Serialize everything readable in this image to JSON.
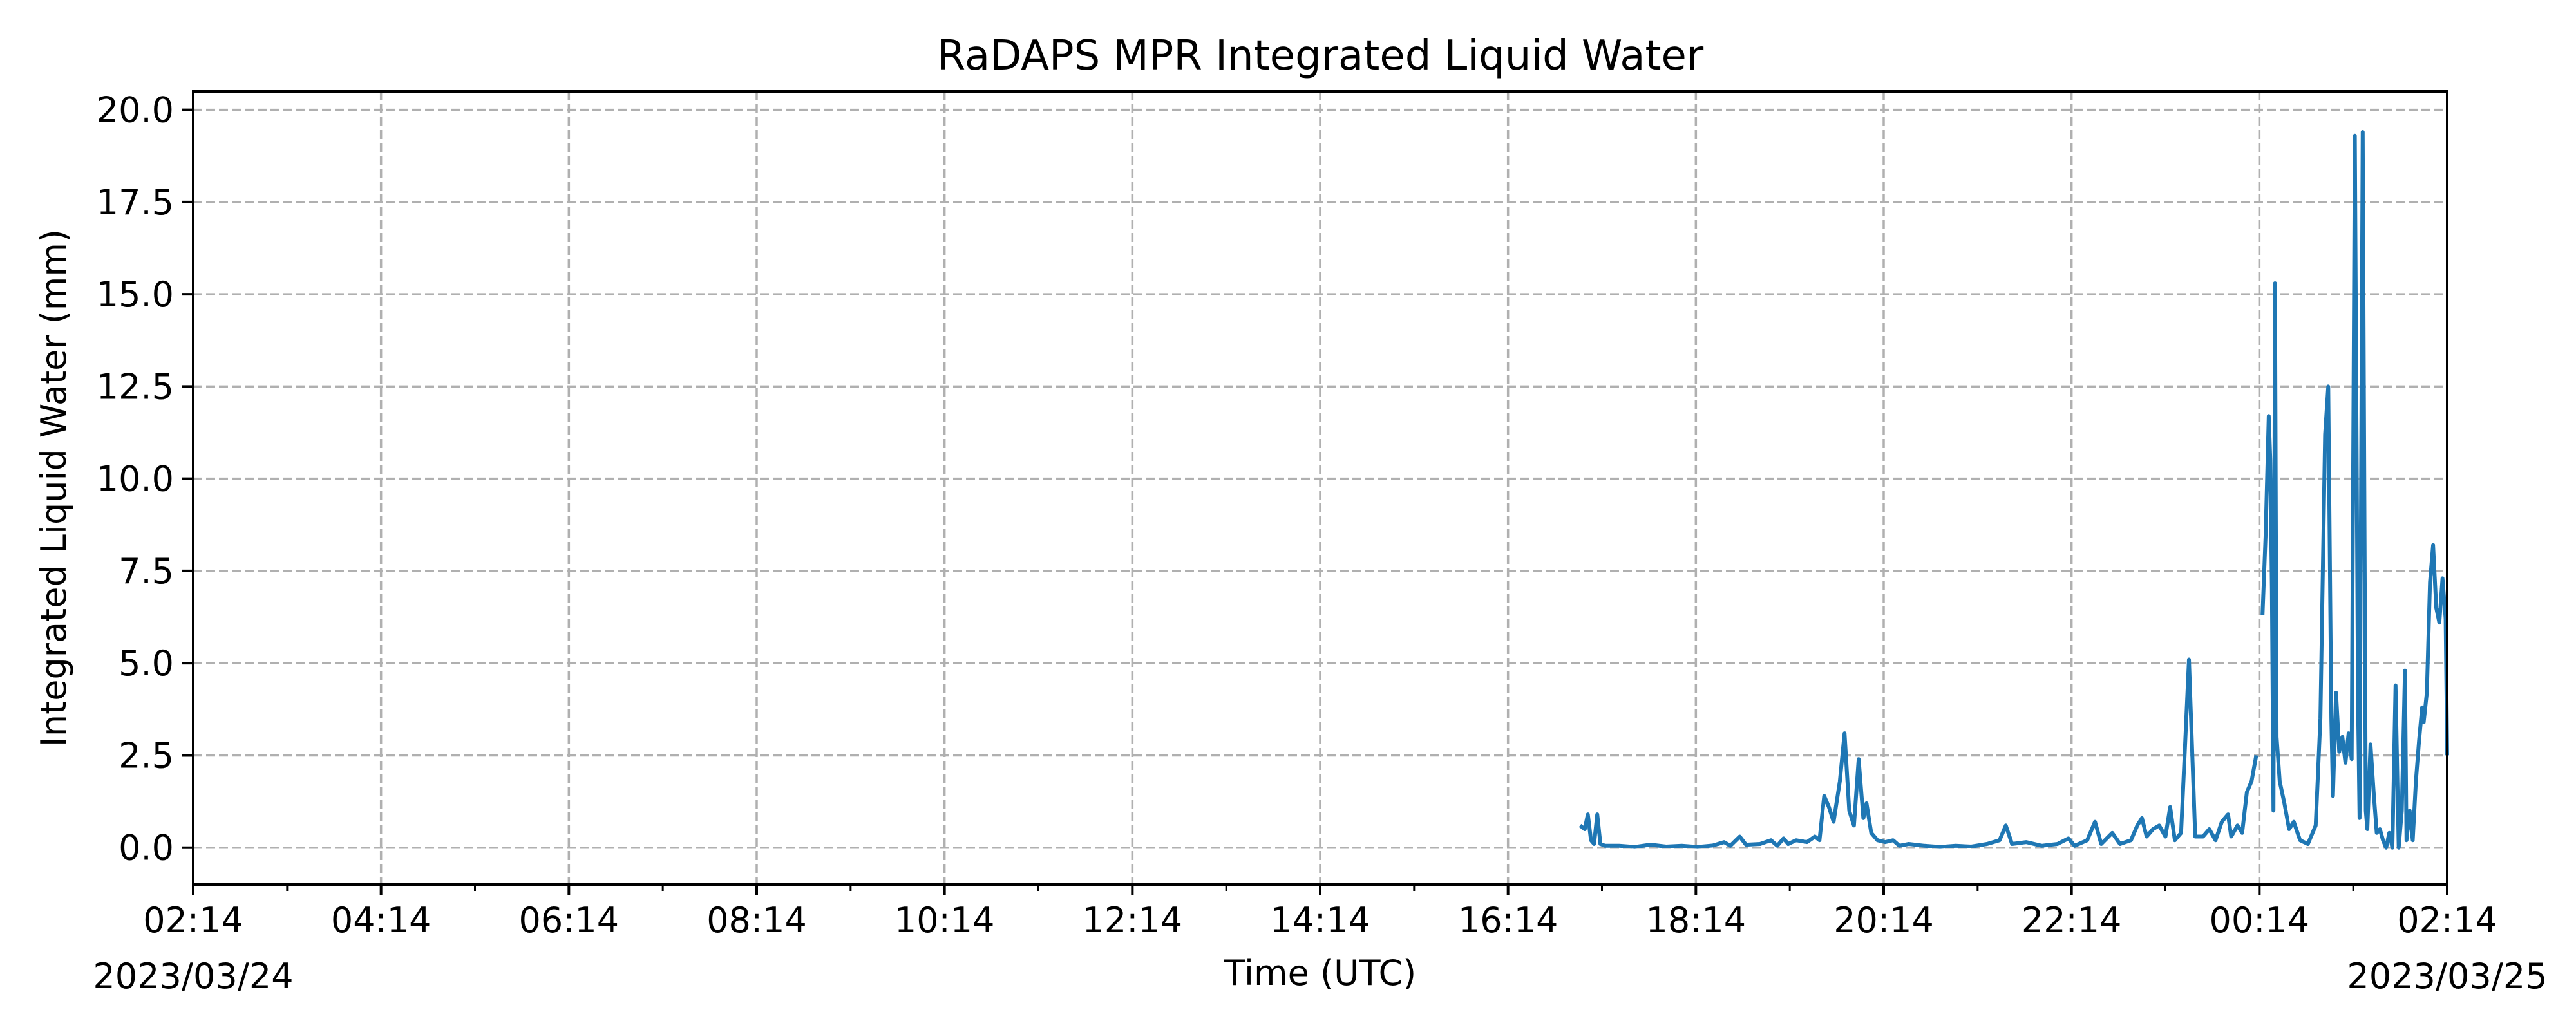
{
  "chart_data": {
    "type": "line",
    "title": "RaDAPS MPR Integrated Liquid Water",
    "xlabel": "Time (UTC)",
    "ylabel": "Integrated Liquid Water (mm)",
    "x_range": [
      "2023-03-24T02:14",
      "2023-03-25T02:14"
    ],
    "ylim": [
      -1.0,
      20.5
    ],
    "grid": true,
    "x_major_ticks": [
      "2023-03-24T02:14",
      "2023-03-24T04:14",
      "2023-03-24T06:14",
      "2023-03-24T08:14",
      "2023-03-24T10:14",
      "2023-03-24T12:14",
      "2023-03-24T14:14",
      "2023-03-24T16:14",
      "2023-03-24T18:14",
      "2023-03-24T20:14",
      "2023-03-24T22:14",
      "2023-03-25T00:14",
      "2023-03-25T02:14"
    ],
    "x_tick_labels": [
      "02:14",
      "04:14",
      "06:14",
      "08:14",
      "10:14",
      "12:14",
      "14:14",
      "16:14",
      "18:14",
      "20:14",
      "22:14",
      "00:14",
      "02:14"
    ],
    "x_date_labels": {
      "start": "2023/03/24",
      "end": "2023/03/25"
    },
    "y_ticks": [
      0.0,
      2.5,
      5.0,
      7.5,
      10.0,
      12.5,
      15.0,
      17.5,
      20.0
    ],
    "y_tick_labels": [
      "0.0",
      "2.5",
      "5.0",
      "7.5",
      "10.0",
      "12.5",
      "15.0",
      "17.5",
      "20.0"
    ],
    "series_color": "#1f77b4",
    "segments": [
      [
        [
          "2023-03-24T17:00",
          0.6
        ],
        [
          "2023-03-24T17:03",
          0.5
        ],
        [
          "2023-03-24T17:05",
          0.9
        ],
        [
          "2023-03-24T17:07",
          0.2
        ],
        [
          "2023-03-24T17:09",
          0.1
        ],
        [
          "2023-03-24T17:11",
          0.9
        ],
        [
          "2023-03-24T17:13",
          0.1
        ],
        [
          "2023-03-24T17:16",
          0.05
        ],
        [
          "2023-03-24T17:25",
          0.05
        ],
        [
          "2023-03-24T17:35",
          0.02
        ],
        [
          "2023-03-24T17:45",
          0.08
        ],
        [
          "2023-03-24T17:55",
          0.03
        ],
        [
          "2023-03-24T18:05",
          0.05
        ],
        [
          "2023-03-24T18:15",
          0.02
        ],
        [
          "2023-03-24T18:25",
          0.06
        ],
        [
          "2023-03-24T18:32",
          0.15
        ],
        [
          "2023-03-24T18:36",
          0.05
        ],
        [
          "2023-03-24T18:42",
          0.3
        ],
        [
          "2023-03-24T18:46",
          0.08
        ],
        [
          "2023-03-24T18:55",
          0.1
        ],
        [
          "2023-03-24T19:02",
          0.2
        ],
        [
          "2023-03-24T19:06",
          0.05
        ],
        [
          "2023-03-24T19:10",
          0.25
        ],
        [
          "2023-03-24T19:13",
          0.1
        ],
        [
          "2023-03-24T19:18",
          0.2
        ],
        [
          "2023-03-24T19:25",
          0.15
        ],
        [
          "2023-03-24T19:30",
          0.3
        ],
        [
          "2023-03-24T19:33",
          0.2
        ],
        [
          "2023-03-24T19:36",
          1.4
        ],
        [
          "2023-03-24T19:39",
          1.1
        ],
        [
          "2023-03-24T19:42",
          0.7
        ],
        [
          "2023-03-24T19:46",
          1.8
        ],
        [
          "2023-03-24T19:49",
          3.1
        ],
        [
          "2023-03-24T19:52",
          1.0
        ],
        [
          "2023-03-24T19:55",
          0.6
        ],
        [
          "2023-03-24T19:58",
          2.4
        ],
        [
          "2023-03-24T20:01",
          0.8
        ],
        [
          "2023-03-24T20:03",
          1.2
        ],
        [
          "2023-03-24T20:06",
          0.4
        ],
        [
          "2023-03-24T20:10",
          0.2
        ],
        [
          "2023-03-24T20:15",
          0.15
        ],
        [
          "2023-03-24T20:20",
          0.2
        ],
        [
          "2023-03-24T20:24",
          0.05
        ],
        [
          "2023-03-24T20:30",
          0.1
        ],
        [
          "2023-03-24T20:40",
          0.05
        ],
        [
          "2023-03-24T20:50",
          0.02
        ],
        [
          "2023-03-24T21:00",
          0.05
        ],
        [
          "2023-03-24T21:10",
          0.03
        ],
        [
          "2023-03-24T21:20",
          0.1
        ],
        [
          "2023-03-24T21:28",
          0.2
        ],
        [
          "2023-03-24T21:32",
          0.6
        ],
        [
          "2023-03-24T21:36",
          0.1
        ],
        [
          "2023-03-24T21:45",
          0.15
        ],
        [
          "2023-03-24T21:55",
          0.05
        ],
        [
          "2023-03-24T22:05",
          0.1
        ],
        [
          "2023-03-24T22:12",
          0.25
        ],
        [
          "2023-03-24T22:16",
          0.05
        ],
        [
          "2023-03-24T22:24",
          0.2
        ],
        [
          "2023-03-24T22:29",
          0.7
        ],
        [
          "2023-03-24T22:33",
          0.1
        ],
        [
          "2023-03-24T22:40",
          0.4
        ],
        [
          "2023-03-24T22:45",
          0.1
        ],
        [
          "2023-03-24T22:52",
          0.2
        ],
        [
          "2023-03-24T22:56",
          0.6
        ],
        [
          "2023-03-24T22:59",
          0.8
        ],
        [
          "2023-03-24T23:02",
          0.3
        ],
        [
          "2023-03-24T23:06",
          0.5
        ],
        [
          "2023-03-24T23:10",
          0.6
        ],
        [
          "2023-03-24T23:14",
          0.3
        ],
        [
          "2023-03-24T23:17",
          1.1
        ],
        [
          "2023-03-24T23:20",
          0.2
        ],
        [
          "2023-03-24T23:24",
          0.4
        ],
        [
          "2023-03-24T23:29",
          5.1
        ],
        [
          "2023-03-24T23:33",
          0.3
        ],
        [
          "2023-03-24T23:38",
          0.3
        ],
        [
          "2023-03-24T23:42",
          0.5
        ],
        [
          "2023-03-24T23:46",
          0.2
        ],
        [
          "2023-03-24T23:50",
          0.7
        ],
        [
          "2023-03-24T23:54",
          0.9
        ],
        [
          "2023-03-24T23:56",
          0.3
        ],
        [
          "2023-03-25T00:00",
          0.6
        ],
        [
          "2023-03-25T00:03",
          0.4
        ],
        [
          "2023-03-25T00:06",
          1.5
        ],
        [
          "2023-03-25T00:09",
          1.8
        ],
        [
          "2023-03-25T00:12",
          2.5
        ]
      ],
      [
        [
          "2023-03-25T00:16",
          6.3
        ],
        [
          "2023-03-25T00:18",
          8.5
        ],
        [
          "2023-03-25T00:20",
          11.7
        ],
        [
          "2023-03-25T00:21",
          10.5
        ],
        [
          "2023-03-25T00:22",
          7.0
        ],
        [
          "2023-03-25T00:23",
          1.0
        ],
        [
          "2023-03-25T00:24",
          15.3
        ],
        [
          "2023-03-25T00:25",
          3.0
        ],
        [
          "2023-03-25T00:27",
          1.8
        ],
        [
          "2023-03-25T00:30",
          1.2
        ],
        [
          "2023-03-25T00:33",
          0.5
        ],
        [
          "2023-03-25T00:36",
          0.7
        ],
        [
          "2023-03-25T00:40",
          0.2
        ],
        [
          "2023-03-25T00:45",
          0.1
        ],
        [
          "2023-03-25T00:50",
          0.6
        ],
        [
          "2023-03-25T00:53",
          3.5
        ],
        [
          "2023-03-25T00:56",
          11.2
        ],
        [
          "2023-03-25T00:58",
          12.5
        ],
        [
          "2023-03-25T01:00",
          3.5
        ],
        [
          "2023-03-25T01:01",
          1.4
        ],
        [
          "2023-03-25T01:03",
          4.2
        ],
        [
          "2023-03-25T01:05",
          2.6
        ],
        [
          "2023-03-25T01:07",
          3.0
        ],
        [
          "2023-03-25T01:09",
          2.3
        ],
        [
          "2023-03-25T01:11",
          3.1
        ],
        [
          "2023-03-25T01:13",
          2.4
        ],
        [
          "2023-03-25T01:15",
          19.3
        ],
        [
          "2023-03-25T01:17",
          4.0
        ],
        [
          "2023-03-25T01:18",
          0.8
        ],
        [
          "2023-03-25T01:20",
          19.4
        ],
        [
          "2023-03-25T01:22",
          1.0
        ],
        [
          "2023-03-25T01:23",
          0.5
        ],
        [
          "2023-03-25T01:25",
          2.8
        ],
        [
          "2023-03-25T01:27",
          1.5
        ],
        [
          "2023-03-25T01:29",
          0.4
        ],
        [
          "2023-03-25T01:31",
          0.5
        ],
        [
          "2023-03-25T01:33",
          0.2
        ],
        [
          "2023-03-25T01:35",
          0.0
        ],
        [
          "2023-03-25T01:37",
          0.4
        ],
        [
          "2023-03-25T01:39",
          0.0
        ],
        [
          "2023-03-25T01:41",
          4.4
        ],
        [
          "2023-03-25T01:43",
          0.0
        ],
        [
          "2023-03-25T01:45",
          1.0
        ],
        [
          "2023-03-25T01:47",
          4.8
        ],
        [
          "2023-03-25T01:48",
          0.2
        ],
        [
          "2023-03-25T01:50",
          1.0
        ],
        [
          "2023-03-25T01:52",
          0.2
        ],
        [
          "2023-03-25T01:54",
          1.8
        ],
        [
          "2023-03-25T01:56",
          2.9
        ],
        [
          "2023-03-25T01:58",
          3.8
        ],
        [
          "2023-03-25T01:59",
          3.4
        ],
        [
          "2023-03-25T02:01",
          4.2
        ],
        [
          "2023-03-25T02:03",
          7.2
        ],
        [
          "2023-03-25T02:05",
          8.2
        ],
        [
          "2023-03-25T02:07",
          6.5
        ],
        [
          "2023-03-25T02:09",
          6.1
        ],
        [
          "2023-03-25T02:11",
          7.3
        ],
        [
          "2023-03-25T02:13",
          6.2
        ],
        [
          "2023-03-25T02:14",
          2.5
        ]
      ]
    ]
  }
}
